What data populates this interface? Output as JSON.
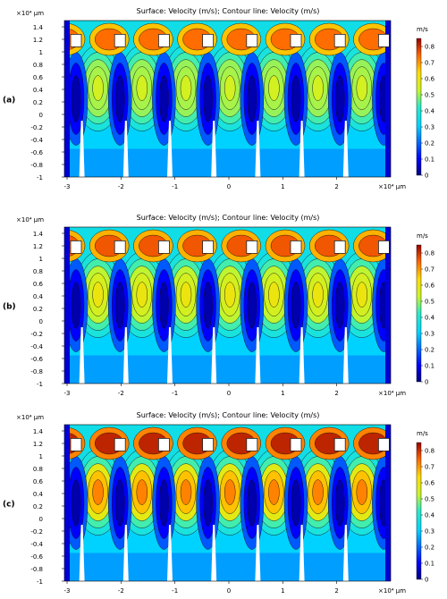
{
  "chart_data": [
    {
      "type": "heatmap",
      "panel_label": "(a)",
      "title": "Surface: Velocity (m/s); Contour line: Velocity (m/s)",
      "x_unit_label": "×10⁴ μm",
      "y_unit_label": "×10⁴ μm",
      "x_ticks": [
        "-3",
        "-2",
        "-1",
        "0",
        "1",
        "2"
      ],
      "y_ticks": [
        "1.4",
        "1.2",
        "1",
        "0.8",
        "0.6",
        "0.4",
        "0.2",
        "0",
        "-0.2",
        "-0.4",
        "-0.6",
        "-0.8",
        "-1"
      ],
      "xlim": [
        -3.05,
        3.0
      ],
      "ylim": [
        -1.0,
        1.5
      ],
      "colorbar": {
        "label": "m/s",
        "ticks": [
          "0",
          "0.1",
          "0.2",
          "0.3",
          "0.4",
          "0.5",
          "0.6",
          "0.7",
          "0.8"
        ],
        "range": [
          0,
          0.85
        ]
      },
      "peak_velocity": 0.55
    },
    {
      "type": "heatmap",
      "panel_label": "(b)",
      "title": "Surface: Velocity (m/s); Contour line: Velocity (m/s)",
      "x_unit_label": "×10⁴ μm",
      "y_unit_label": "×10⁴ μm",
      "x_ticks": [
        "-3",
        "-2",
        "-1",
        "0",
        "1",
        "2"
      ],
      "y_ticks": [
        "1.4",
        "1.2",
        "1",
        "0.8",
        "0.6",
        "0.4",
        "0.2",
        "0",
        "-0.2",
        "-0.4",
        "-0.6",
        "-0.8",
        "-1"
      ],
      "xlim": [
        -3.05,
        3.0
      ],
      "ylim": [
        -1.0,
        1.5
      ],
      "colorbar": {
        "label": "m/s",
        "ticks": [
          "0",
          "0.1",
          "0.2",
          "0.3",
          "0.4",
          "0.5",
          "0.6",
          "0.7",
          "0.8"
        ],
        "range": [
          0,
          0.85
        ]
      },
      "peak_velocity": 0.6
    },
    {
      "type": "heatmap",
      "panel_label": "(c)",
      "title": "Surface: Velocity (m/s); Contour line: Velocity (m/s)",
      "x_unit_label": "×10⁴ μm",
      "y_unit_label": "×10⁴ μm",
      "x_ticks": [
        "-3",
        "-2",
        "-1",
        "0",
        "1",
        "2"
      ],
      "y_ticks": [
        "1.4",
        "1.2",
        "1",
        "0.8",
        "0.6",
        "0.4",
        "0.2",
        "0",
        "-0.2",
        "-0.4",
        "-0.6",
        "-0.8",
        "-1"
      ],
      "xlim": [
        -3.05,
        3.0
      ],
      "ylim": [
        -1.0,
        1.5
      ],
      "colorbar": {
        "label": "m/s",
        "ticks": [
          "0",
          "0.1",
          "0.2",
          "0.3",
          "0.4",
          "0.5",
          "0.6",
          "0.7",
          "0.8"
        ],
        "range": [
          0,
          0.85
        ]
      },
      "peak_velocity": 0.72
    }
  ]
}
